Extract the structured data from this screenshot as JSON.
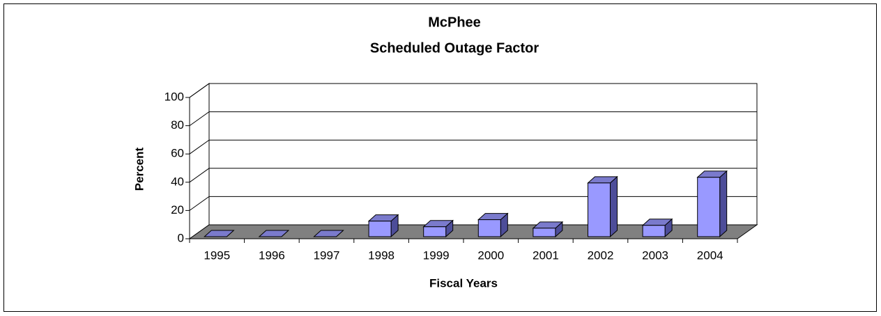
{
  "chart_data": {
    "type": "bar3d",
    "title": "McPhee",
    "subtitle": "Scheduled Outage Factor",
    "x_label": "Fiscal Years",
    "y_label": "Percent",
    "categories": [
      "1995",
      "1996",
      "1997",
      "1998",
      "1999",
      "2000",
      "2001",
      "2002",
      "2003",
      "2004"
    ],
    "values": [
      0,
      0,
      0,
      11,
      7,
      12,
      6,
      38,
      8,
      42
    ],
    "color": "#9999ff",
    "ylim": [
      0,
      100
    ],
    "yticks": [
      0,
      20,
      40,
      60,
      80,
      100
    ],
    "grid": true
  }
}
